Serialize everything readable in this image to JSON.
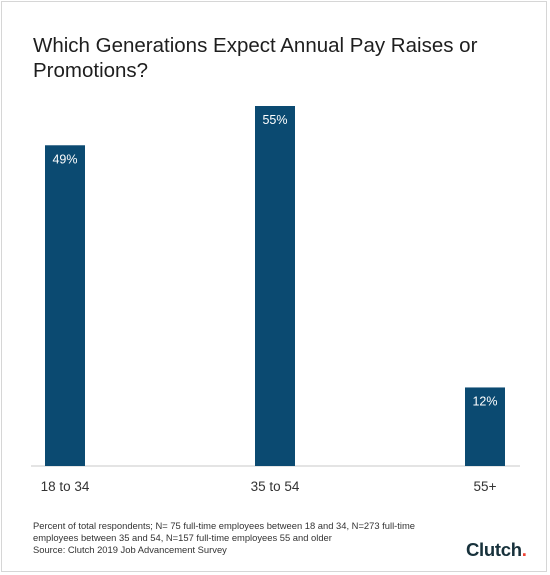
{
  "chart_data": {
    "type": "bar",
    "title": "Which Generations Expect Annual Pay Raises or Promotions?",
    "categories": [
      "18 to 34",
      "35 to 54",
      "55+"
    ],
    "values": [
      49,
      55,
      12
    ],
    "value_labels": [
      "49%",
      "55%",
      "12%"
    ],
    "ylim": [
      0,
      55
    ],
    "grid": false,
    "legend": "none",
    "bar_color": "#0b4a71"
  },
  "footnote": {
    "line1": "Percent of total respondents; N= 75 full-time employees between 18 and 34, N=273 full-time",
    "line2": "employees between 35 and 54, N=157 full-time employees 55 and older",
    "line3": "Source: Clutch 2019 Job Advancement Survey"
  },
  "logo": {
    "text": "Clutch",
    "dot": ".",
    "dot_color": "#ef4335"
  }
}
